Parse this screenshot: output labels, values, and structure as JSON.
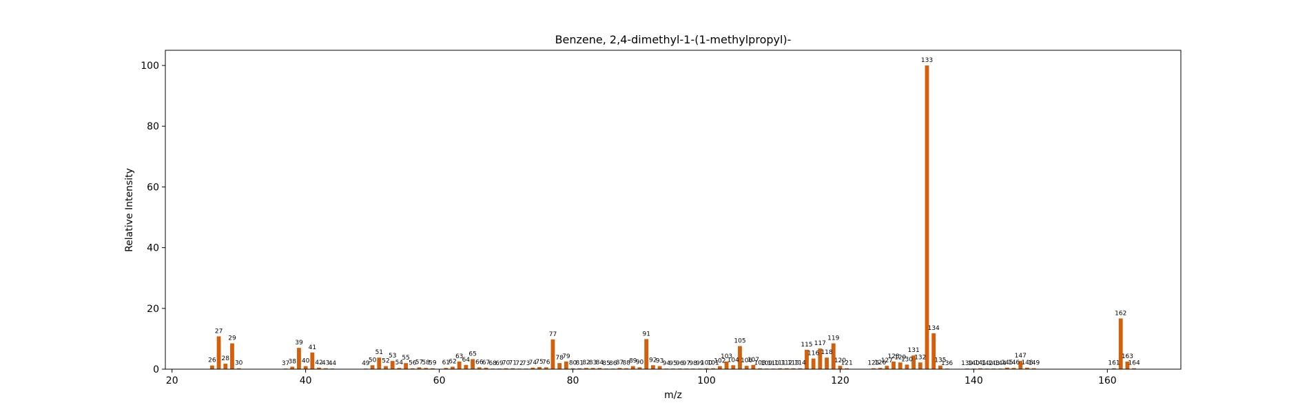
{
  "chart_data": {
    "type": "bar",
    "title": "Benzene, 2,4-dimethyl-1-(1-methylpropyl)-",
    "xlabel": "m/z",
    "ylabel": "Relative Intensity",
    "xlim": [
      19,
      171
    ],
    "ylim": [
      0,
      105
    ],
    "xticks": [
      20,
      40,
      60,
      80,
      100,
      120,
      140,
      160
    ],
    "yticks": [
      0,
      20,
      40,
      60,
      80,
      100
    ],
    "grid": false,
    "bar_color": "#d35f0a",
    "x": [
      26,
      27,
      28,
      29,
      30,
      37,
      38,
      39,
      40,
      41,
      42,
      43,
      44,
      49,
      50,
      51,
      52,
      53,
      54,
      55,
      56,
      57,
      58,
      59,
      61,
      62,
      63,
      64,
      65,
      66,
      67,
      68,
      69,
      70,
      71,
      72,
      73,
      74,
      75,
      76,
      77,
      78,
      79,
      80,
      81,
      82,
      83,
      84,
      85,
      86,
      87,
      88,
      89,
      90,
      91,
      92,
      93,
      94,
      95,
      96,
      97,
      98,
      99,
      100,
      101,
      102,
      103,
      104,
      105,
      106,
      107,
      108,
      109,
      110,
      111,
      112,
      113,
      114,
      115,
      116,
      117,
      118,
      119,
      120,
      121,
      125,
      126,
      127,
      128,
      129,
      130,
      131,
      132,
      133,
      134,
      135,
      136,
      139,
      140,
      141,
      142,
      143,
      144,
      145,
      146,
      147,
      148,
      149,
      161,
      162,
      163,
      164
    ],
    "values": [
      1.2,
      10.8,
      1.8,
      8.5,
      0.3,
      0.2,
      0.8,
      7.0,
      1.0,
      5.5,
      0.5,
      0.3,
      0.2,
      0.2,
      1.3,
      3.8,
      1.0,
      2.7,
      0.4,
      2.0,
      0.3,
      0.6,
      0.4,
      0.3,
      0.4,
      0.8,
      2.5,
      1.4,
      3.3,
      0.6,
      0.5,
      0.2,
      0.2,
      0.3,
      0.3,
      0.2,
      0.2,
      0.5,
      0.7,
      0.6,
      9.8,
      2.0,
      2.5,
      0.3,
      0.3,
      0.4,
      0.4,
      0.4,
      0.2,
      0.2,
      0.4,
      0.3,
      1.0,
      0.6,
      9.9,
      1.3,
      1.0,
      0.2,
      0.2,
      0.2,
      0.2,
      0.2,
      0.2,
      0.3,
      0.3,
      1.0,
      2.5,
      1.3,
      7.6,
      1.1,
      1.4,
      0.3,
      0.2,
      0.2,
      0.3,
      0.3,
      0.3,
      0.3,
      6.4,
      3.5,
      6.8,
      3.8,
      8.5,
      1.1,
      0.3,
      0.3,
      0.4,
      1.1,
      2.5,
      2.2,
      1.5,
      4.5,
      2.2,
      100,
      11.8,
      1.2,
      0.2,
      0.2,
      0.2,
      0.3,
      0.2,
      0.2,
      0.2,
      0.5,
      0.4,
      2.7,
      0.5,
      0.3,
      0.3,
      16.7,
      2.5,
      0.3
    ]
  }
}
